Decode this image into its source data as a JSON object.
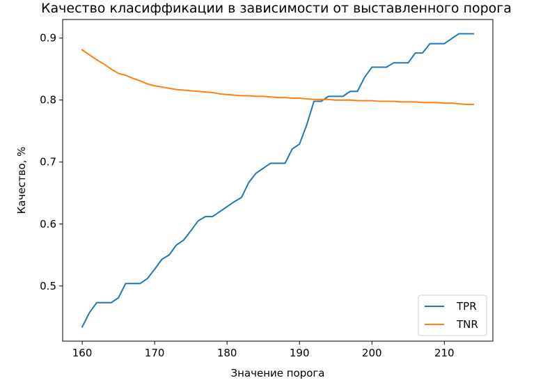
{
  "chart_data": {
    "type": "line",
    "title": "Качество класиффикации в зависимости от выставленного порога",
    "xlabel": "Значение порога",
    "ylabel": "Качество, %",
    "xlim": [
      157.3,
      216.7
    ],
    "ylim": [
      0.411,
      0.93
    ],
    "xticks": [
      160,
      170,
      180,
      190,
      200,
      210
    ],
    "yticks": [
      0.5,
      0.6,
      0.7,
      0.8,
      0.9
    ],
    "xtick_labels": [
      "160",
      "170",
      "180",
      "190",
      "200",
      "210"
    ],
    "ytick_labels": [
      "0.5",
      "0.6",
      "0.7",
      "0.8",
      "0.9"
    ],
    "grid": false,
    "legend_position": "bottom-right",
    "x": [
      160,
      161,
      162,
      163,
      164,
      165,
      166,
      167,
      168,
      169,
      170,
      171,
      172,
      173,
      174,
      175,
      176,
      177,
      178,
      179,
      180,
      181,
      182,
      183,
      184,
      185,
      186,
      187,
      188,
      189,
      190,
      191,
      192,
      193,
      194,
      195,
      196,
      197,
      198,
      199,
      200,
      201,
      202,
      203,
      204,
      205,
      206,
      207,
      208,
      209,
      210,
      211,
      212,
      213,
      214
    ],
    "series": [
      {
        "name": "TPR",
        "color": "#1f77b4",
        "values": [
          0.434,
          0.457,
          0.473,
          0.473,
          0.473,
          0.481,
          0.504,
          0.504,
          0.504,
          0.512,
          0.527,
          0.543,
          0.55,
          0.566,
          0.574,
          0.589,
          0.605,
          0.612,
          0.612,
          0.62,
          0.628,
          0.636,
          0.643,
          0.667,
          0.682,
          0.69,
          0.698,
          0.698,
          0.698,
          0.721,
          0.729,
          0.76,
          0.798,
          0.798,
          0.806,
          0.806,
          0.806,
          0.814,
          0.814,
          0.837,
          0.853,
          0.853,
          0.853,
          0.86,
          0.86,
          0.86,
          0.876,
          0.876,
          0.891,
          0.891,
          0.891,
          0.899,
          0.907,
          0.907,
          0.907
        ]
      },
      {
        "name": "TNR",
        "color": "#ff7f0e",
        "values": [
          0.881,
          0.873,
          0.865,
          0.858,
          0.85,
          0.843,
          0.84,
          0.835,
          0.831,
          0.826,
          0.823,
          0.821,
          0.819,
          0.817,
          0.816,
          0.815,
          0.814,
          0.813,
          0.812,
          0.81,
          0.809,
          0.808,
          0.807,
          0.807,
          0.806,
          0.806,
          0.805,
          0.804,
          0.804,
          0.803,
          0.803,
          0.802,
          0.801,
          0.801,
          0.801,
          0.8,
          0.8,
          0.8,
          0.799,
          0.799,
          0.799,
          0.798,
          0.798,
          0.798,
          0.797,
          0.797,
          0.797,
          0.796,
          0.796,
          0.796,
          0.795,
          0.795,
          0.794,
          0.793,
          0.793
        ]
      }
    ]
  }
}
